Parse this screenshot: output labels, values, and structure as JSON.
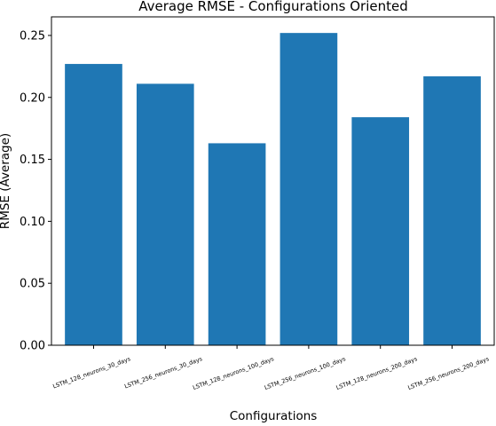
{
  "chart_data": {
    "type": "bar",
    "title": "Average RMSE - Configurations Oriented",
    "xlabel": "Configurations",
    "ylabel": "RMSE (Average)",
    "categories": [
      "LSTM_128_neurons_30_days",
      "LSTM_256_neurons_30_days",
      "LSTM_128_neurons_100_days",
      "LSTM_256_neurons_100_days",
      "LSTM_128_neurons_200_days",
      "LSTM_256_neurons_200_days"
    ],
    "values": [
      0.227,
      0.211,
      0.163,
      0.252,
      0.184,
      0.217
    ],
    "ylim": [
      0,
      0.265
    ],
    "yticks": [
      0.0,
      0.05,
      0.1,
      0.15,
      0.2,
      0.25
    ],
    "ytick_labels": [
      "0.00",
      "0.05",
      "0.10",
      "0.15",
      "0.20",
      "0.25"
    ],
    "bar_color": "#1f77b4",
    "grid": false,
    "legend": "none"
  }
}
